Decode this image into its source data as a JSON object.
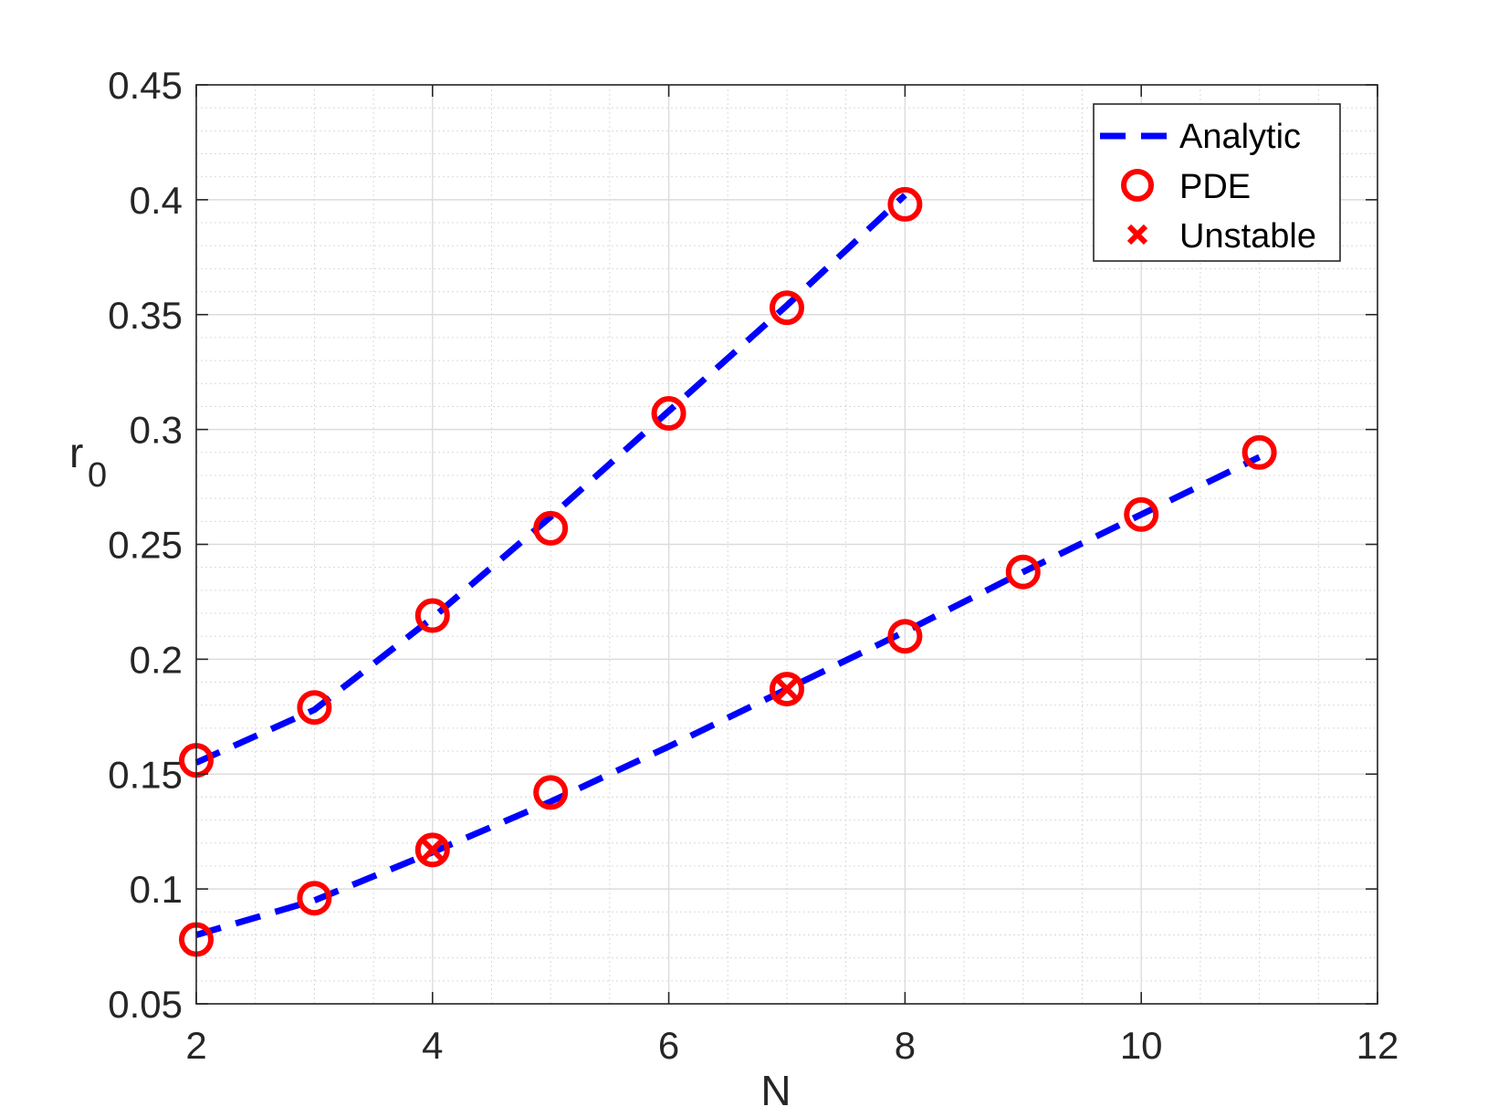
{
  "chart_data": {
    "type": "line",
    "xlabel": "N",
    "ylabel": "r",
    "ylabel_subscript": "0",
    "xlim": [
      2,
      12
    ],
    "ylim": [
      0.05,
      0.45
    ],
    "xticks": [
      "2",
      "4",
      "6",
      "8",
      "10",
      "12"
    ],
    "yticks": [
      "0.05",
      "0.1",
      "0.15",
      "0.2",
      "0.25",
      "0.3",
      "0.35",
      "0.4",
      "0.45"
    ],
    "grid": true,
    "minor_grid": true,
    "legend_position": "top-right",
    "colors": {
      "analytic": "#0000ff",
      "pde": "#ff0000",
      "unstable": "#ff0000",
      "axes": "#262626"
    },
    "series": [
      {
        "name": "Analytic",
        "style": "dashed-line",
        "curves": [
          {
            "x": [
              2,
              3,
              4,
              5,
              6,
              7,
              8
            ],
            "y": [
              0.155,
              0.178,
              0.218,
              0.262,
              0.308,
              0.354,
              0.402
            ]
          },
          {
            "x": [
              2,
              3,
              4,
              5,
              6,
              7,
              8,
              9,
              10,
              11
            ],
            "y": [
              0.08,
              0.095,
              0.116,
              0.138,
              0.162,
              0.187,
              0.212,
              0.238,
              0.263,
              0.288
            ]
          }
        ]
      },
      {
        "name": "PDE",
        "style": "circle-marker",
        "curves": [
          {
            "x": [
              2,
              3,
              4,
              5,
              6,
              7,
              8
            ],
            "y": [
              0.156,
              0.179,
              0.219,
              0.257,
              0.307,
              0.353,
              0.398
            ]
          },
          {
            "x": [
              2,
              3,
              4,
              5,
              7,
              8,
              9,
              10,
              11
            ],
            "y": [
              0.078,
              0.096,
              0.117,
              0.142,
              0.187,
              0.21,
              0.238,
              0.263,
              0.29
            ]
          }
        ]
      },
      {
        "name": "Unstable",
        "style": "x-marker",
        "curves": [
          {
            "x": [
              4,
              7
            ],
            "y": [
              0.117,
              0.187
            ]
          }
        ]
      }
    ]
  }
}
